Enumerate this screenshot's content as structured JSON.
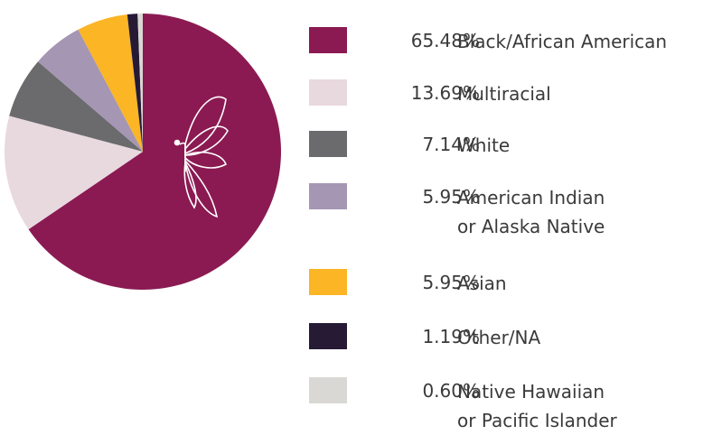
{
  "chart_data": {
    "type": "pie",
    "categories": [
      "Black/African American",
      "Multiracial",
      "White",
      "American Indian\nor Alaska Native",
      "Asian",
      "Other/NA",
      "Native Hawaiian\nor Pacific Islander"
    ],
    "values": [
      65.48,
      13.69,
      7.14,
      5.95,
      5.95,
      1.19,
      0.6
    ],
    "value_labels": [
      "65.48%",
      "13.69%",
      "7.14%",
      "5.95%",
      "5.95%",
      "1.19%",
      "0.60%"
    ],
    "colors": [
      "#8b1a52",
      "#e8d9df",
      "#6b6b6e",
      "#a596b3",
      "#fbb525",
      "#261a35",
      "#d9d8d4"
    ]
  }
}
